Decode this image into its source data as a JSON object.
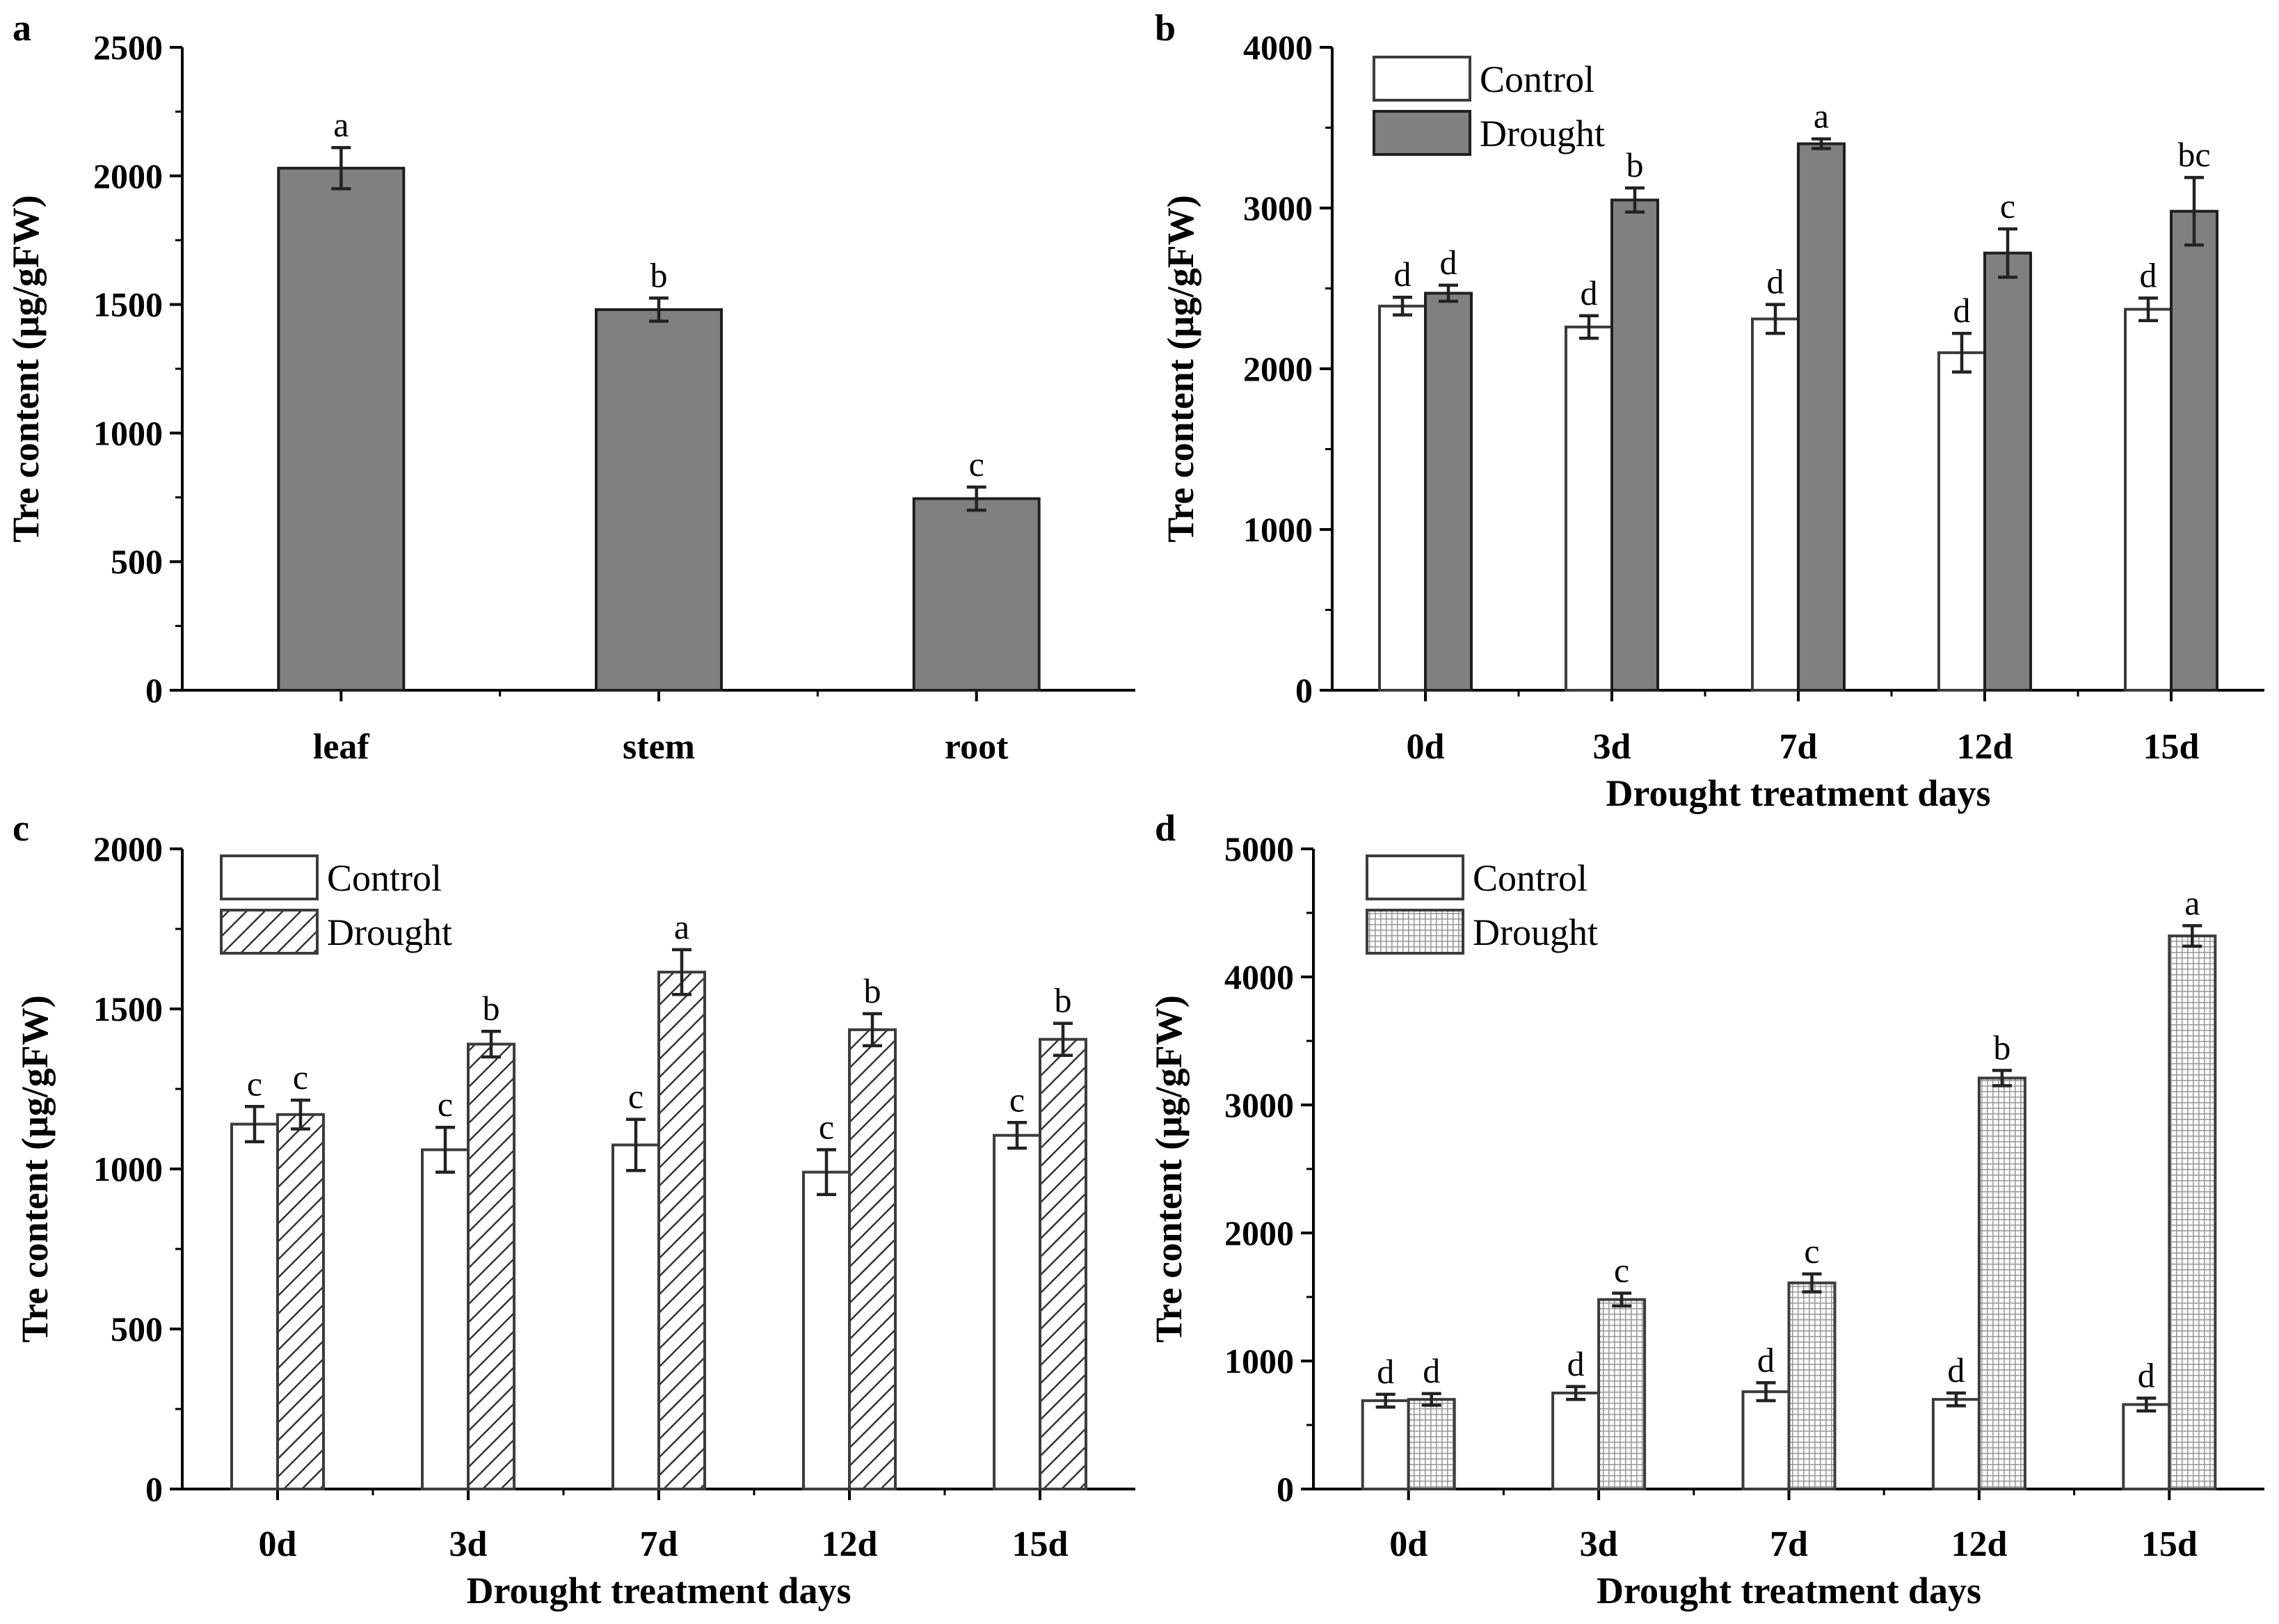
{
  "figure": {
    "panels": [
      "a",
      "b",
      "c",
      "d"
    ]
  },
  "chart_data": [
    {
      "id": "a",
      "type": "bar",
      "panel_label": "a",
      "categories": [
        "leaf",
        "stem",
        "root"
      ],
      "series": [
        {
          "name": "",
          "style": "solid-gray",
          "values": [
            2030,
            1480,
            745
          ],
          "errors": [
            80,
            45,
            45
          ],
          "letters": [
            "a",
            "b",
            "c"
          ]
        }
      ],
      "ylabel": "Tre content (μg/gFW)",
      "xlabel": "",
      "ylim": [
        0,
        2500
      ],
      "yticks": [
        0,
        500,
        1000,
        1500,
        2000,
        2500
      ],
      "legend": false
    },
    {
      "id": "b",
      "type": "bar",
      "panel_label": "b",
      "categories": [
        "0d",
        "3d",
        "7d",
        "12d",
        "15d"
      ],
      "series": [
        {
          "name": "Control",
          "style": "white",
          "values": [
            2390,
            2260,
            2310,
            2100,
            2370
          ],
          "errors": [
            55,
            70,
            90,
            120,
            70
          ],
          "letters": [
            "d",
            "d",
            "d",
            "d",
            "d"
          ]
        },
        {
          "name": "Drought",
          "style": "solid-gray",
          "values": [
            2470,
            3050,
            3400,
            2720,
            2980
          ],
          "errors": [
            50,
            75,
            30,
            150,
            210
          ],
          "letters": [
            "d",
            "b",
            "a",
            "c",
            "bc"
          ]
        }
      ],
      "ylabel": "Tre content (μg/gFW)",
      "xlabel": "Drought treatment days",
      "ylim": [
        0,
        4000
      ],
      "yticks": [
        0,
        1000,
        2000,
        3000,
        4000
      ],
      "legend": true
    },
    {
      "id": "c",
      "type": "bar",
      "panel_label": "c",
      "categories": [
        "0d",
        "3d",
        "7d",
        "12d",
        "15d"
      ],
      "series": [
        {
          "name": "Control",
          "style": "white",
          "values": [
            1140,
            1060,
            1075,
            990,
            1105
          ],
          "errors": [
            55,
            70,
            80,
            70,
            40
          ],
          "letters": [
            "c",
            "c",
            "c",
            "c",
            "c"
          ]
        },
        {
          "name": "Drought",
          "style": "hatch",
          "values": [
            1170,
            1390,
            1615,
            1435,
            1405
          ],
          "errors": [
            45,
            40,
            70,
            50,
            50
          ],
          "letters": [
            "c",
            "b",
            "a",
            "b",
            "b"
          ]
        }
      ],
      "ylabel": "Tre content (μg/gFW)",
      "xlabel": "Drought treatment days",
      "ylim": [
        0,
        2000
      ],
      "yticks": [
        0,
        500,
        1000,
        1500,
        2000
      ],
      "legend": true
    },
    {
      "id": "d",
      "type": "bar",
      "panel_label": "d",
      "categories": [
        "0d",
        "3d",
        "7d",
        "12d",
        "15d"
      ],
      "series": [
        {
          "name": "Control",
          "style": "white",
          "values": [
            690,
            750,
            760,
            700,
            660
          ],
          "errors": [
            50,
            50,
            70,
            50,
            50
          ],
          "letters": [
            "d",
            "d",
            "d",
            "d",
            "d"
          ]
        },
        {
          "name": "Drought",
          "style": "dots",
          "values": [
            700,
            1480,
            1610,
            3210,
            4320
          ],
          "errors": [
            45,
            50,
            70,
            60,
            80
          ],
          "letters": [
            "d",
            "c",
            "c",
            "b",
            "a"
          ]
        }
      ],
      "ylabel": "Tre content (μg/gFW)",
      "xlabel": "Drought treatment days",
      "ylim": [
        0,
        5000
      ],
      "yticks": [
        0,
        1000,
        2000,
        3000,
        4000,
        5000
      ],
      "legend": true
    }
  ]
}
